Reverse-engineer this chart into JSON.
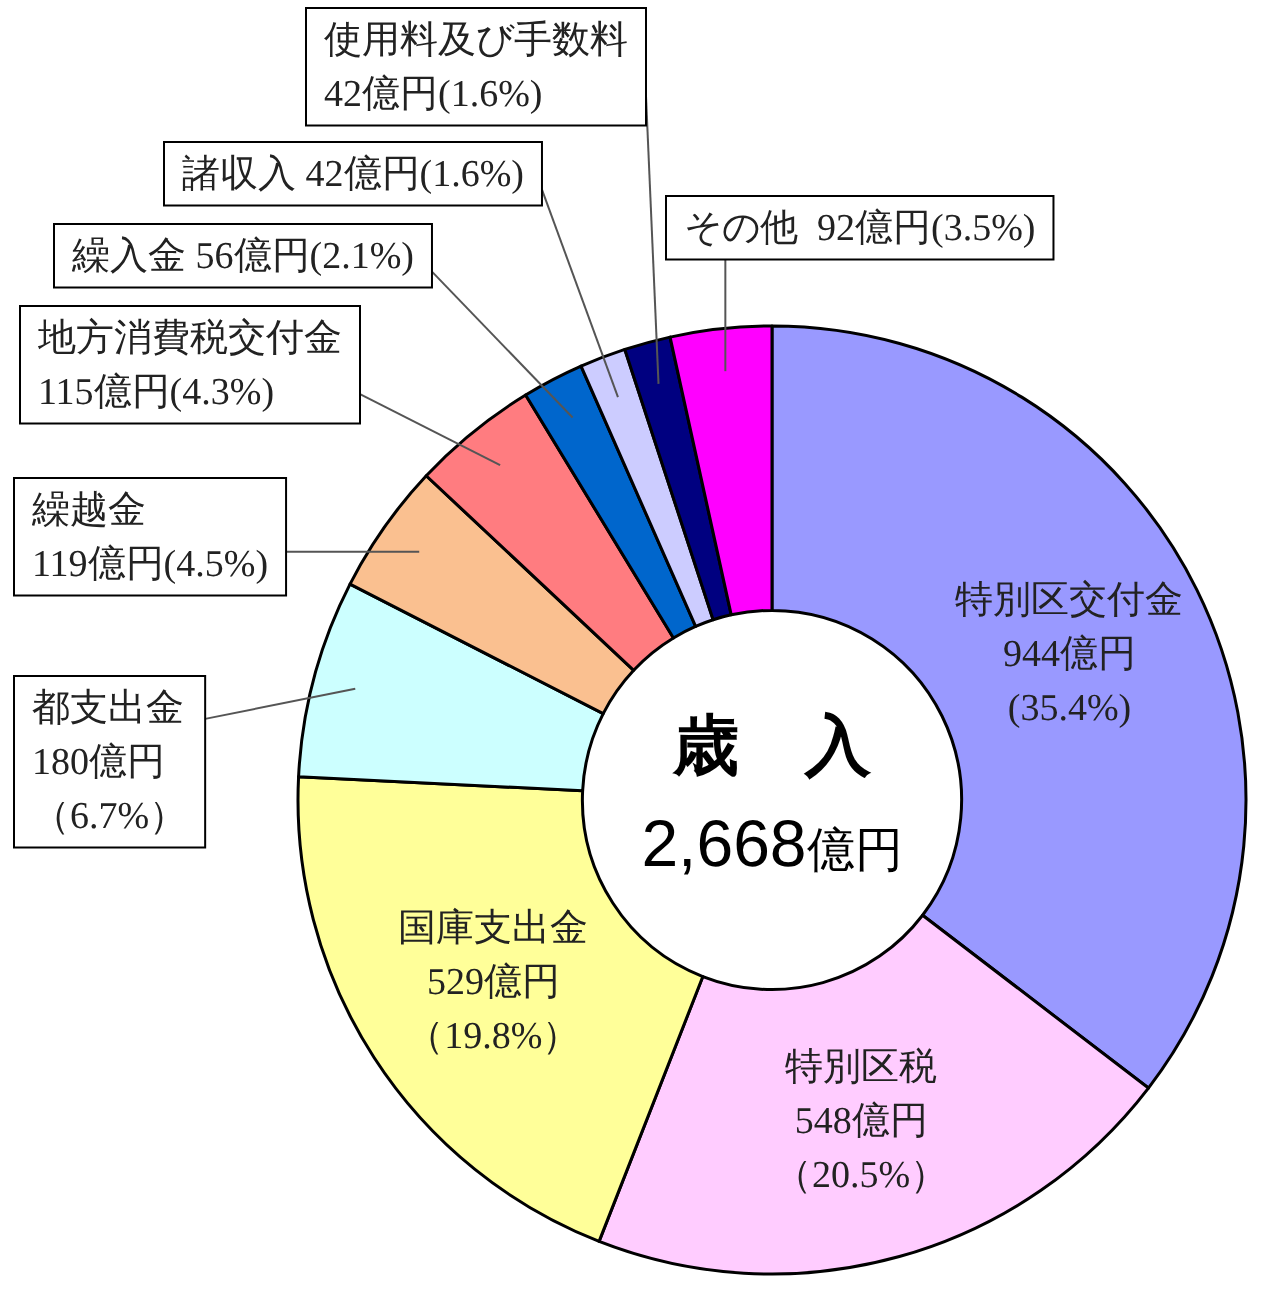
{
  "chart_data": {
    "type": "donut",
    "title": "歳　入",
    "subtitle": "2,668億円",
    "categories": [
      "特別区交付金",
      "特別区税",
      "国庫支出金",
      "都支出金",
      "繰越金",
      "地方消費税交付金",
      "繰入金",
      "諸収入",
      "使用料及び手数料",
      "その他"
    ],
    "values": [
      944,
      548,
      529,
      180,
      119,
      115,
      56,
      42,
      42,
      92
    ],
    "colors": [
      "#9999ff",
      "#ffccff",
      "#ffff99",
      "#ccffff",
      "#fac090",
      "#ff7c80",
      "#0066cc",
      "#ccccff",
      "#000080",
      "#ff00ff"
    ],
    "value_labels": [
      "944億円(35.4%)",
      "548億円（20.5%）",
      "529億円（19.8%）",
      "180億円（6.7%）",
      "119億円(4.5%)",
      "115億円(4.3%)",
      "56億円(2.1%)",
      "42億円(1.6%)",
      "42億円(1.6%)",
      "92億円(3.5%)"
    ]
  }
}
